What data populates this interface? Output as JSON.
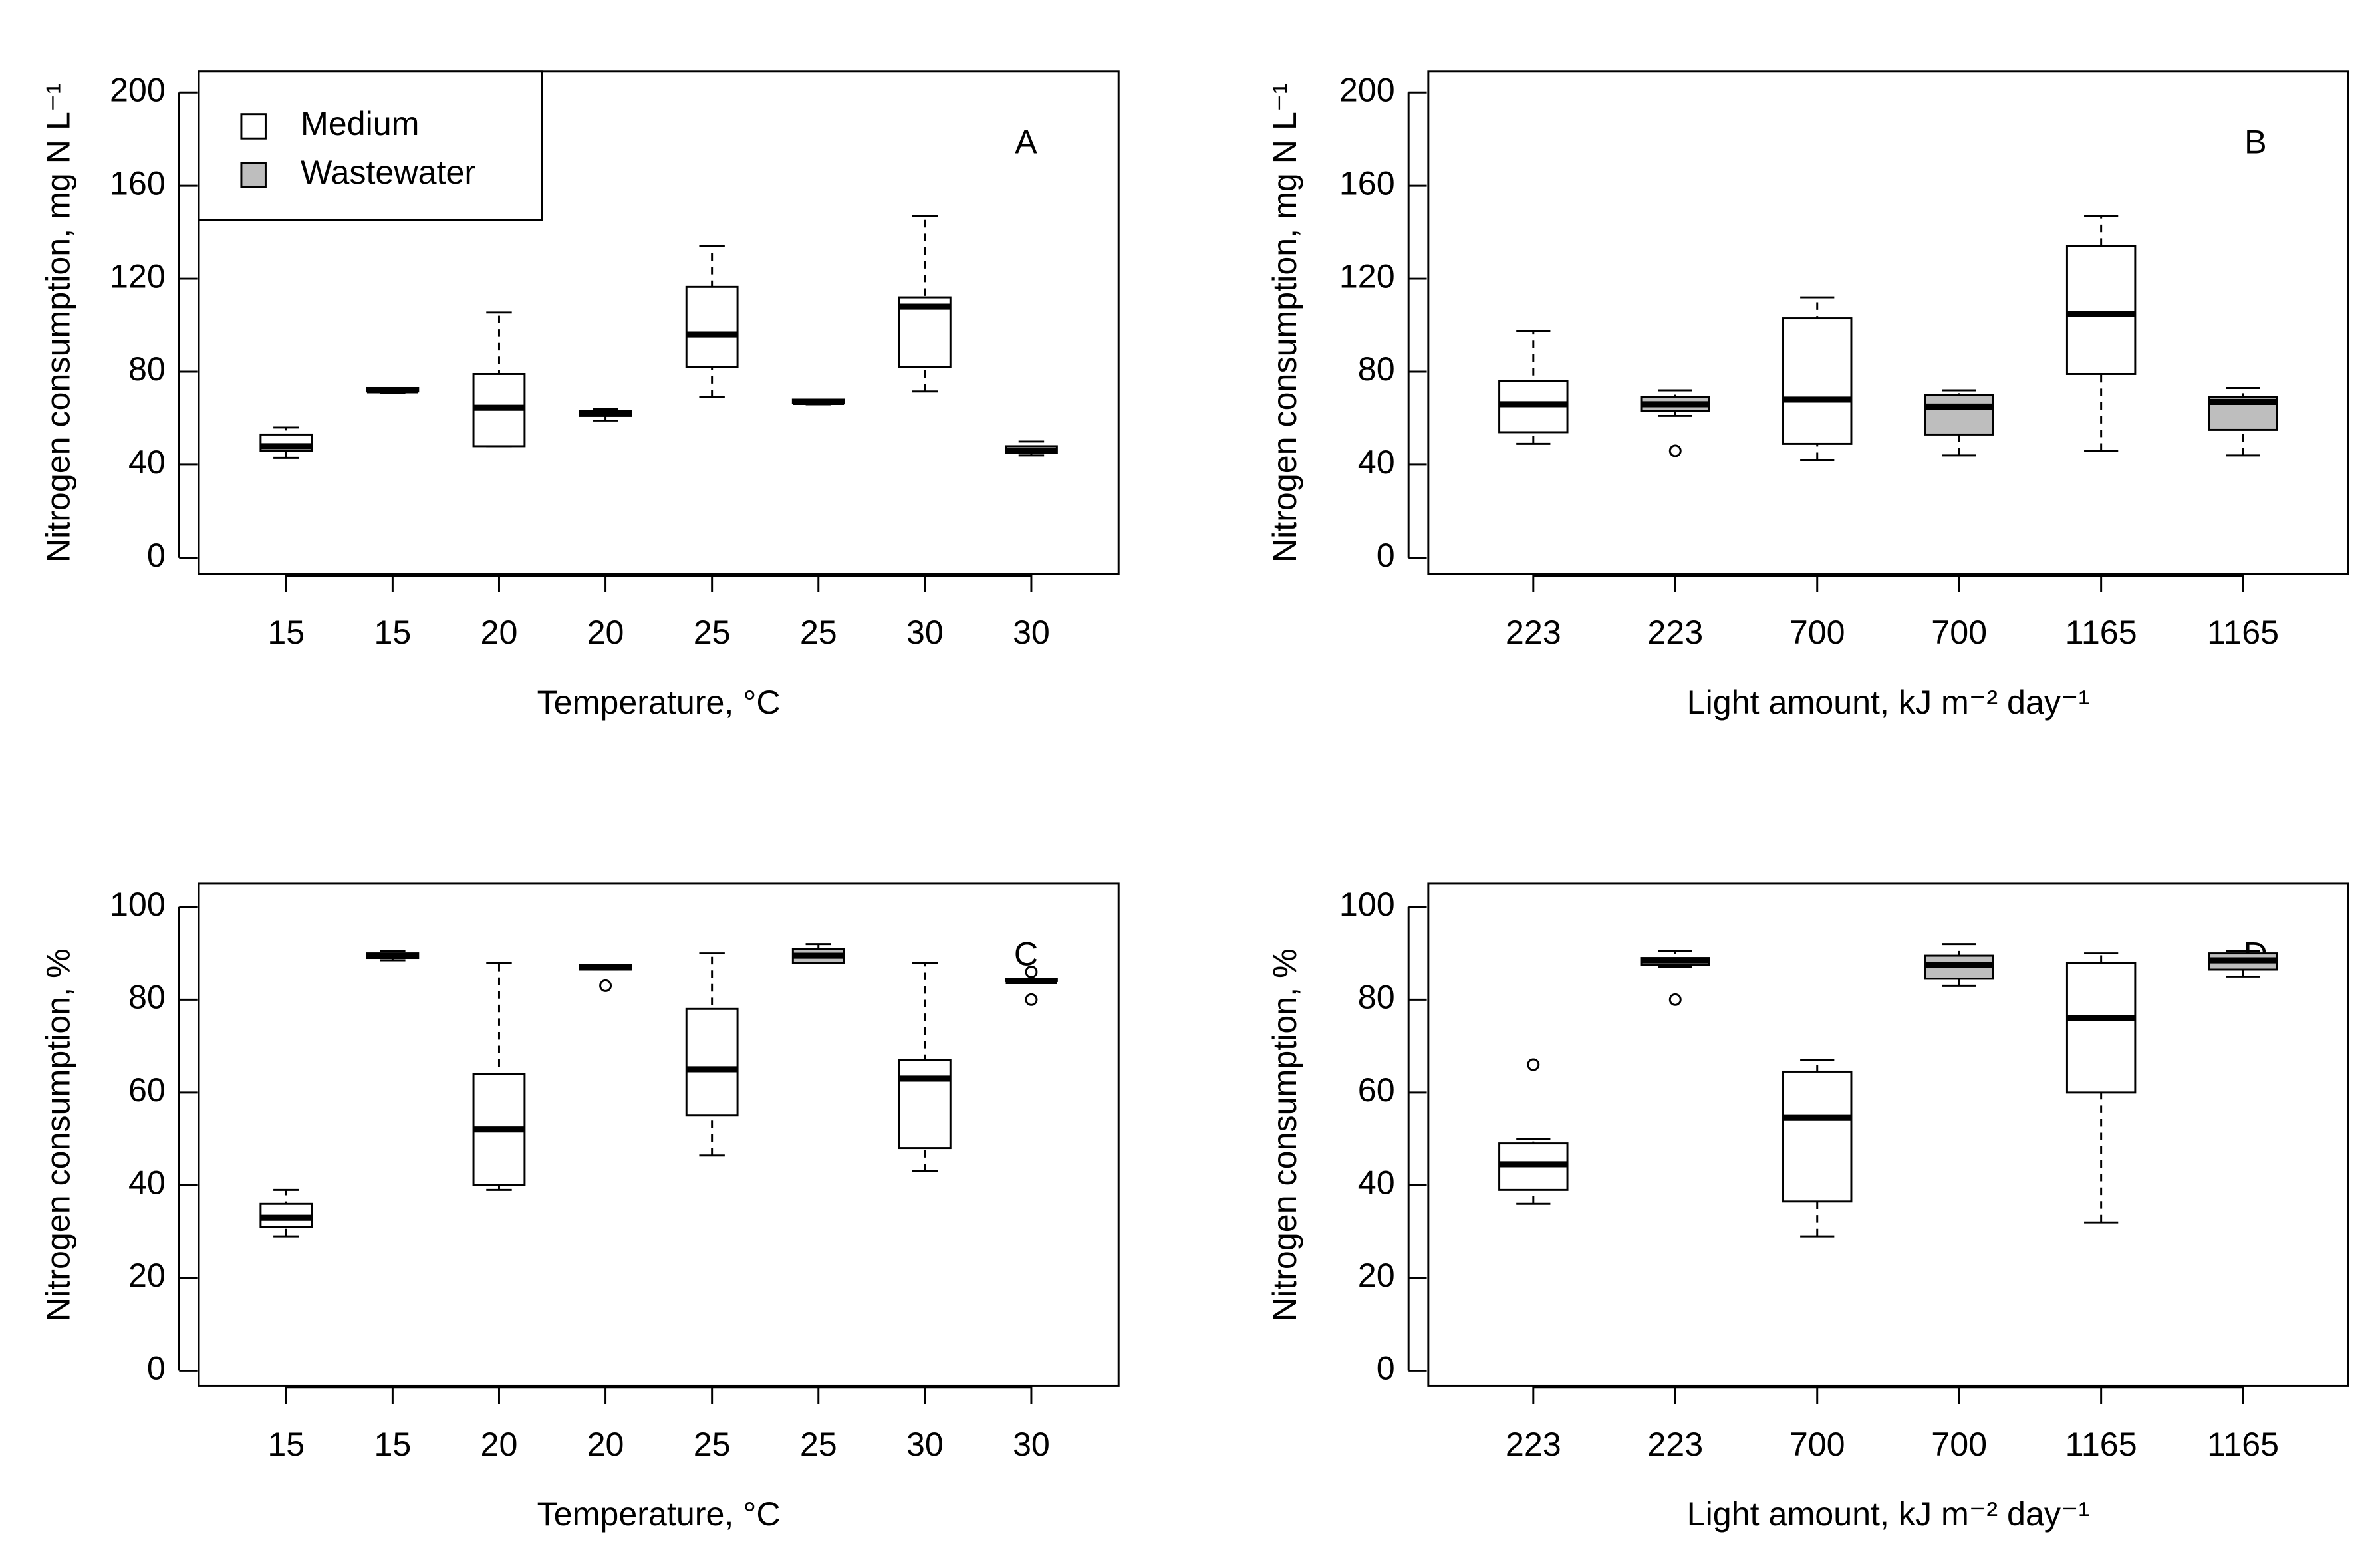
{
  "chart_data": [
    {
      "type": "box",
      "panel_label": "A",
      "ylabel": "Nitrogen consumption, mg N L⁻¹",
      "xlabel": "Temperature, °C",
      "categories": [
        "15",
        "15",
        "20",
        "20",
        "25",
        "25",
        "30",
        "30"
      ],
      "ylim": [
        -7,
        209
      ],
      "yticks": [
        0,
        40,
        80,
        120,
        160,
        200
      ],
      "legend_position": "top-left",
      "legend": [
        {
          "name": "Medium",
          "color": "#ffffff"
        },
        {
          "name": "Wastewater",
          "color": "#bebebe"
        }
      ],
      "boxes": [
        {
          "fill": "#ffffff",
          "min": 43,
          "q1": 46,
          "median": 48,
          "q3": 53,
          "max": 56
        },
        {
          "fill": "#bebebe",
          "min": 71,
          "q1": 71.5,
          "median": 72,
          "q3": 73,
          "max": 73
        },
        {
          "fill": "#ffffff",
          "min": 48,
          "q1": 48,
          "median": 64.5,
          "q3": 79,
          "max": 105.5
        },
        {
          "fill": "#bebebe",
          "min": 59,
          "q1": 61,
          "median": 62,
          "q3": 63,
          "max": 64
        },
        {
          "fill": "#ffffff",
          "min": 69,
          "q1": 82,
          "median": 96,
          "q3": 116.5,
          "max": 134
        },
        {
          "fill": "#bebebe",
          "min": 66,
          "q1": 66.5,
          "median": 67,
          "q3": 68,
          "max": 68
        },
        {
          "fill": "#ffffff",
          "min": 71.5,
          "q1": 82,
          "median": 108,
          "q3": 112,
          "max": 147
        },
        {
          "fill": "#bebebe",
          "min": 44,
          "q1": 45,
          "median": 46,
          "q3": 48,
          "max": 50
        }
      ]
    },
    {
      "type": "box",
      "panel_label": "B",
      "ylabel": "Nitrogen consumption, mg N L⁻¹",
      "xlabel": "Light amount, kJ m⁻² day⁻¹",
      "categories": [
        "223",
        "223",
        "700",
        "700",
        "1165",
        "1165"
      ],
      "ylim": [
        -7,
        209
      ],
      "yticks": [
        0,
        40,
        80,
        120,
        160,
        200
      ],
      "boxes": [
        {
          "fill": "#ffffff",
          "min": 49,
          "q1": 54,
          "median": 66,
          "q3": 76,
          "max": 97.5
        },
        {
          "fill": "#bebebe",
          "min": 61,
          "q1": 63,
          "median": 66,
          "q3": 69,
          "max": 72,
          "outliers": [
            46
          ]
        },
        {
          "fill": "#ffffff",
          "min": 42,
          "q1": 49,
          "median": 68,
          "q3": 103,
          "max": 112
        },
        {
          "fill": "#bebebe",
          "min": 44,
          "q1": 53,
          "median": 65,
          "q3": 70,
          "max": 72
        },
        {
          "fill": "#ffffff",
          "min": 46,
          "q1": 79,
          "median": 105,
          "q3": 134,
          "max": 147
        },
        {
          "fill": "#bebebe",
          "min": 44,
          "q1": 55,
          "median": 67,
          "q3": 69,
          "max": 73
        }
      ]
    },
    {
      "type": "box",
      "panel_label": "C",
      "ylabel": "Nitrogen consumption, %",
      "xlabel": "Temperature, °C",
      "categories": [
        "15",
        "15",
        "20",
        "20",
        "25",
        "25",
        "30",
        "30"
      ],
      "ylim": [
        -3.3,
        105
      ],
      "yticks": [
        0,
        20,
        40,
        60,
        80,
        100
      ],
      "boxes": [
        {
          "fill": "#ffffff",
          "min": 29,
          "q1": 31,
          "median": 33,
          "q3": 36,
          "max": 39
        },
        {
          "fill": "#bebebe",
          "min": 88.5,
          "q1": 89,
          "median": 89.5,
          "q3": 90,
          "max": 90.5
        },
        {
          "fill": "#ffffff",
          "min": 39,
          "q1": 40,
          "median": 52,
          "q3": 64,
          "max": 88
        },
        {
          "fill": "#bebebe",
          "min": 86.5,
          "q1": 86.5,
          "median": 87,
          "q3": 87.5,
          "max": 87.5,
          "outliers": [
            83
          ]
        },
        {
          "fill": "#ffffff",
          "min": 46.4,
          "q1": 55,
          "median": 65,
          "q3": 78,
          "max": 90
        },
        {
          "fill": "#bebebe",
          "min": 88,
          "q1": 88,
          "median": 89.5,
          "q3": 91,
          "max": 92
        },
        {
          "fill": "#ffffff",
          "min": 43,
          "q1": 48,
          "median": 63,
          "q3": 67,
          "max": 88
        },
        {
          "fill": "#bebebe",
          "min": 84,
          "q1": 84,
          "median": 84,
          "q3": 84.5,
          "max": 84.5,
          "outliers": [
            86,
            80
          ]
        }
      ]
    },
    {
      "type": "box",
      "panel_label": "D",
      "ylabel": "Nitrogen consumption, %",
      "xlabel": "Light amount, kJ m⁻² day⁻¹",
      "categories": [
        "223",
        "223",
        "700",
        "700",
        "1165",
        "1165"
      ],
      "ylim": [
        -3.3,
        105
      ],
      "yticks": [
        0,
        20,
        40,
        60,
        80,
        100
      ],
      "boxes": [
        {
          "fill": "#ffffff",
          "min": 36,
          "q1": 39,
          "median": 44.5,
          "q3": 49,
          "max": 50,
          "outliers": [
            66
          ]
        },
        {
          "fill": "#bebebe",
          "min": 87,
          "q1": 87.5,
          "median": 88.5,
          "q3": 89,
          "max": 90.5,
          "outliers": [
            80
          ]
        },
        {
          "fill": "#ffffff",
          "min": 29,
          "q1": 36.5,
          "median": 54.5,
          "q3": 64.5,
          "max": 67
        },
        {
          "fill": "#bebebe",
          "min": 83,
          "q1": 84.5,
          "median": 87.5,
          "q3": 89.5,
          "max": 92
        },
        {
          "fill": "#ffffff",
          "min": 32,
          "q1": 60,
          "median": 76,
          "q3": 88,
          "max": 90
        },
        {
          "fill": "#bebebe",
          "min": 85,
          "q1": 86.5,
          "median": 88.5,
          "q3": 90,
          "max": 90.5
        }
      ]
    }
  ]
}
